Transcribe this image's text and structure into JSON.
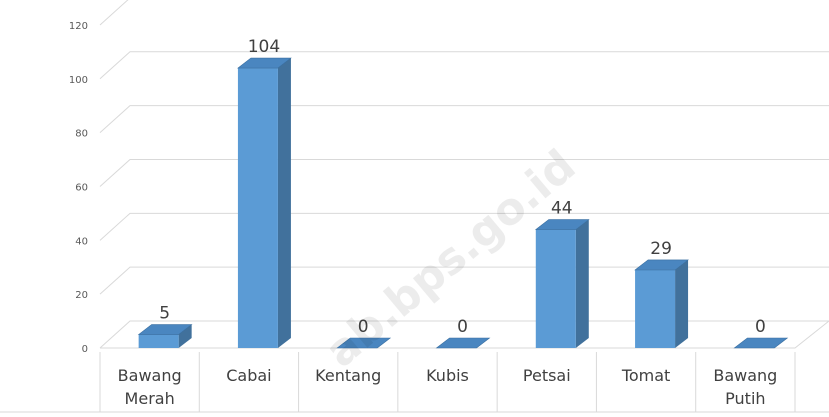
{
  "chart_data": {
    "type": "bar3d",
    "categories": [
      [
        "Bawang",
        "Merah"
      ],
      [
        "Cabai"
      ],
      [
        "Kentang"
      ],
      [
        "Kubis"
      ],
      [
        "Petsai"
      ],
      [
        "Tomat"
      ],
      [
        "Bawang",
        "Putih"
      ]
    ],
    "values": [
      5,
      104,
      0,
      0,
      44,
      29,
      0
    ],
    "color": "#5b9bd5",
    "ylim": [
      0,
      120
    ],
    "yticks": [
      0,
      20,
      40,
      60,
      80,
      100,
      120
    ],
    "grid": true,
    "watermark": "ab.bps.go.id"
  }
}
